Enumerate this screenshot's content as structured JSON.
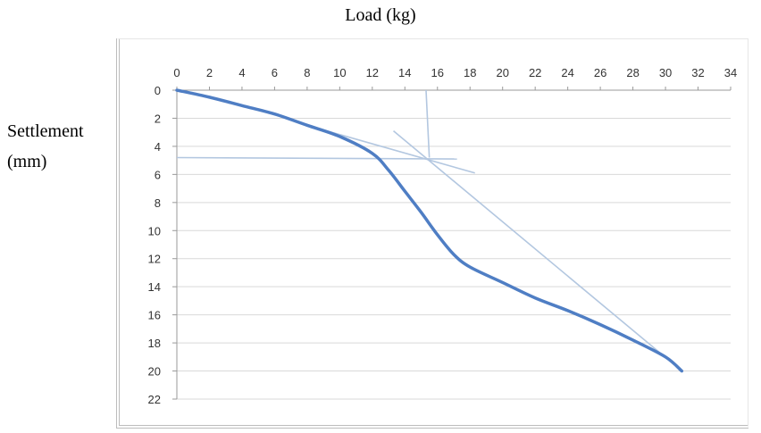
{
  "chart_data": {
    "type": "line",
    "title": "Load (kg)",
    "ylabel_line1": "Settlement",
    "ylabel_line2": "(mm)",
    "x_ticks": [
      "0",
      "2",
      "4",
      "6",
      "8",
      "10",
      "12",
      "14",
      "16",
      "18",
      "20",
      "22",
      "24",
      "26",
      "28",
      "30",
      "32",
      "34"
    ],
    "y_ticks": [
      "0",
      "2",
      "4",
      "6",
      "8",
      "10",
      "12",
      "14",
      "16",
      "18",
      "20",
      "22"
    ],
    "xlim": [
      0,
      34
    ],
    "ylim": [
      0,
      22
    ],
    "y_inverted": true,
    "x_axis_position": "top",
    "grid": "horizontal",
    "colors": {
      "main": "#4f7ec4",
      "construction": "#b3c7e0",
      "grid": "#d9d9d9"
    },
    "series": [
      {
        "values": [
          [
            0,
            0
          ],
          [
            2,
            0.5
          ],
          [
            4,
            1.1
          ],
          [
            6,
            1.7
          ],
          [
            8,
            2.5
          ],
          [
            10,
            3.3
          ],
          [
            12,
            4.5
          ],
          [
            13,
            5.7
          ],
          [
            14,
            7.2
          ],
          [
            15,
            8.7
          ],
          [
            16,
            10.3
          ],
          [
            17,
            11.7
          ],
          [
            18,
            12.6
          ],
          [
            20,
            13.7
          ],
          [
            22,
            14.8
          ],
          [
            24,
            15.7
          ],
          [
            26,
            16.7
          ],
          [
            28,
            17.8
          ],
          [
            30,
            19
          ],
          [
            31,
            20
          ]
        ]
      }
    ],
    "construction_lines": [
      {
        "from": [
          0,
          4.8
        ],
        "to": [
          17.2,
          4.9
        ]
      },
      {
        "from": [
          15.3,
          0
        ],
        "to": [
          15.5,
          4.8
        ]
      },
      {
        "from": [
          8,
          2.5
        ],
        "to": [
          18.3,
          5.9
        ]
      },
      {
        "from": [
          13.3,
          2.9
        ],
        "to": [
          31,
          20
        ]
      }
    ]
  }
}
